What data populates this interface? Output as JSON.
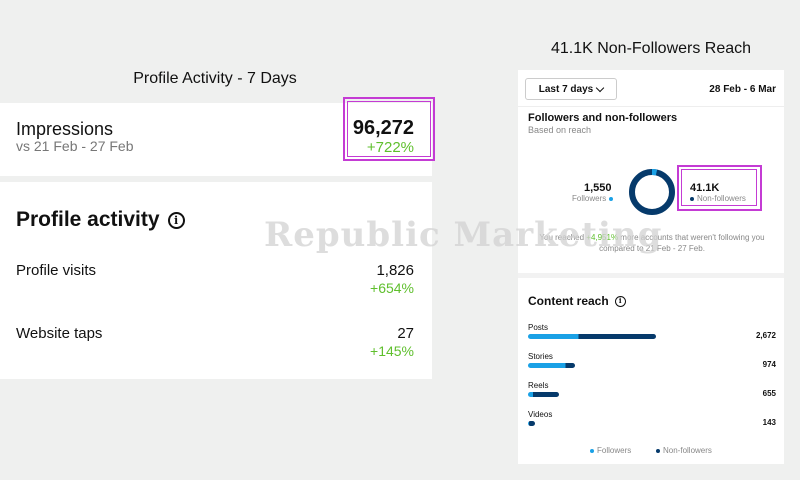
{
  "left": {
    "title": "Profile Activity - 7 Days",
    "impressions": {
      "label": "Impressions",
      "comparison": "vs 21 Feb - 27 Feb",
      "value": "96,272",
      "change": "+722%"
    },
    "activity": {
      "title": "Profile activity",
      "info_icon": "i",
      "rows": [
        {
          "label": "Profile visits",
          "value": "1,826",
          "change": "+654%"
        },
        {
          "label": "Website taps",
          "value": "27",
          "change": "+145%"
        }
      ]
    }
  },
  "watermark": "Republic Marketing",
  "right": {
    "title": "41.1K Non-Followers Reach",
    "dropdown": "Last 7 days",
    "date_range": "28 Feb - 6 Mar",
    "fnf": {
      "title": "Followers and non-followers",
      "subtitle": "Based on reach",
      "followers_value": "1,550",
      "followers_label": "Followers",
      "nonfollowers_value": "41.1K",
      "nonfollowers_label": "Non-followers",
      "followers_share": 0.036,
      "reached_pre": "You reached ",
      "reached_pct": "+4,951%",
      "reached_post": " more accounts that weren't following you compared to 21 Feb - 27 Feb."
    },
    "content_reach": {
      "title": "Content reach",
      "info_icon": "i",
      "max": 2672,
      "items": [
        {
          "label": "Posts",
          "value": "2,672",
          "total": 2672,
          "followers": 1050
        },
        {
          "label": "Stories",
          "value": "974",
          "total": 974,
          "followers": 780
        },
        {
          "label": "Reels",
          "value": "655",
          "total": 655,
          "followers": 100
        },
        {
          "label": "Videos",
          "value": "143",
          "total": 143,
          "followers": 20
        }
      ],
      "legend_followers": "Followers",
      "legend_nonfollowers": "Non-followers"
    },
    "colors": {
      "followers": "#1aa1e6",
      "nonfollowers": "#063a6b",
      "positive": "#5fbf2d",
      "highlight": "#c43bd4"
    }
  }
}
